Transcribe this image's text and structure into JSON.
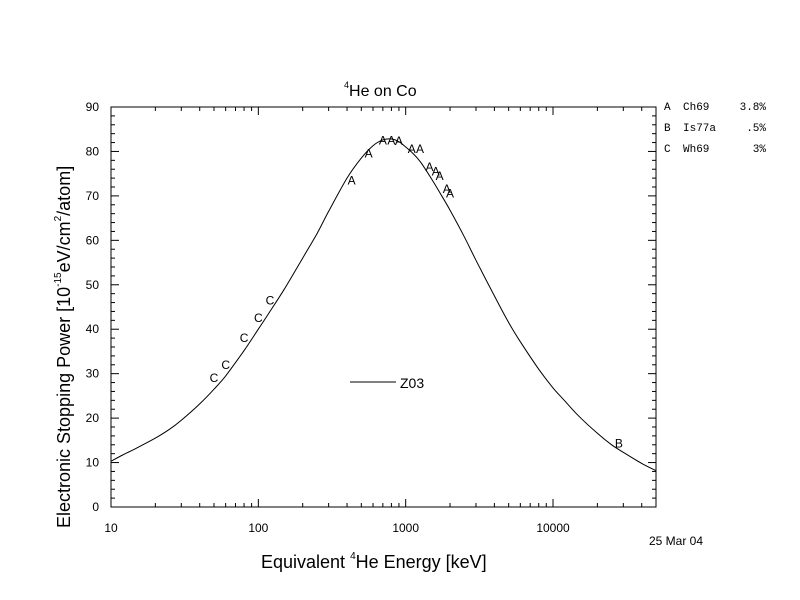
{
  "chart_data": {
    "type": "line",
    "title": {
      "sup": "4",
      "text": "He on Co"
    },
    "xlabel": {
      "pre": "Equivalent ",
      "sup": "4",
      "post": "He Energy [keV]"
    },
    "ylabel": {
      "a": "Electronic Stopping Power [10",
      "b": "-15",
      "c": "eV/cm",
      "d": "2",
      "e": "/atom]"
    },
    "x_scale": "log",
    "xlim": [
      10,
      50000
    ],
    "ylim": [
      0,
      90
    ],
    "x_ticks": [
      10,
      100,
      1000,
      10000
    ],
    "x_tick_labels": [
      "10",
      "100",
      "1000",
      "10000"
    ],
    "y_ticks": [
      0,
      10,
      20,
      30,
      40,
      50,
      60,
      70,
      80,
      90
    ],
    "y_tick_labels": [
      "0",
      "10",
      "20",
      "30",
      "40",
      "50",
      "60",
      "70",
      "80",
      "90"
    ],
    "grid": false,
    "legend_entries": [
      {
        "name": "Z03"
      }
    ],
    "curve": {
      "name": "Z03",
      "x": [
        10,
        12,
        15,
        20,
        25,
        30,
        40,
        50,
        60,
        80,
        100,
        120,
        150,
        200,
        250,
        300,
        400,
        500,
        600,
        700,
        800,
        900,
        1000,
        1100,
        1200,
        1300,
        1500,
        1700,
        2000,
        2500,
        3000,
        4000,
        5000,
        6000,
        8000,
        10000,
        12000,
        15000,
        20000,
        25000,
        30000,
        40000,
        50000
      ],
      "y": [
        10.3,
        11.7,
        13.3,
        15.5,
        17.5,
        19.5,
        23.2,
        26.5,
        29.5,
        35.2,
        40.0,
        44.0,
        49.0,
        56.0,
        61.5,
        66.5,
        74.0,
        78.5,
        81.3,
        82.6,
        82.8,
        82.2,
        81.0,
        79.8,
        78.5,
        77.0,
        73.8,
        70.8,
        66.8,
        60.8,
        55.5,
        47.5,
        41.5,
        37.2,
        31.0,
        26.8,
        23.9,
        20.4,
        16.6,
        14.0,
        12.3,
        9.8,
        8.2
      ]
    },
    "points": [
      {
        "label": "A",
        "x": 430,
        "y": 73.5
      },
      {
        "label": "A",
        "x": 560,
        "y": 79.5
      },
      {
        "label": "A",
        "x": 700,
        "y": 82.5
      },
      {
        "label": "A",
        "x": 800,
        "y": 82.5
      },
      {
        "label": "A",
        "x": 900,
        "y": 82.3
      },
      {
        "label": "A",
        "x": 1100,
        "y": 80.5
      },
      {
        "label": "A",
        "x": 1250,
        "y": 80.5
      },
      {
        "label": "A",
        "x": 1450,
        "y": 76.5
      },
      {
        "label": "A",
        "x": 1600,
        "y": 75.5
      },
      {
        "label": "A",
        "x": 1700,
        "y": 74.5
      },
      {
        "label": "A",
        "x": 1900,
        "y": 71.5
      },
      {
        "label": "A",
        "x": 2000,
        "y": 70.5
      },
      {
        "label": "B",
        "x": 28000,
        "y": 14.3
      },
      {
        "label": "C",
        "x": 50,
        "y": 29.0
      },
      {
        "label": "C",
        "x": 60,
        "y": 32.0
      },
      {
        "label": "C",
        "x": 80,
        "y": 38.0
      },
      {
        "label": "C",
        "x": 100,
        "y": 42.5
      },
      {
        "label": "C",
        "x": 120,
        "y": 46.5
      }
    ],
    "references": [
      {
        "key": "A",
        "source": "Ch69",
        "error": "3.8%"
      },
      {
        "key": "B",
        "source": "Is77a",
        "error": ".5%"
      },
      {
        "key": "C",
        "source": "Wh69",
        "error": "3%"
      }
    ],
    "date": "25 Mar 04"
  }
}
